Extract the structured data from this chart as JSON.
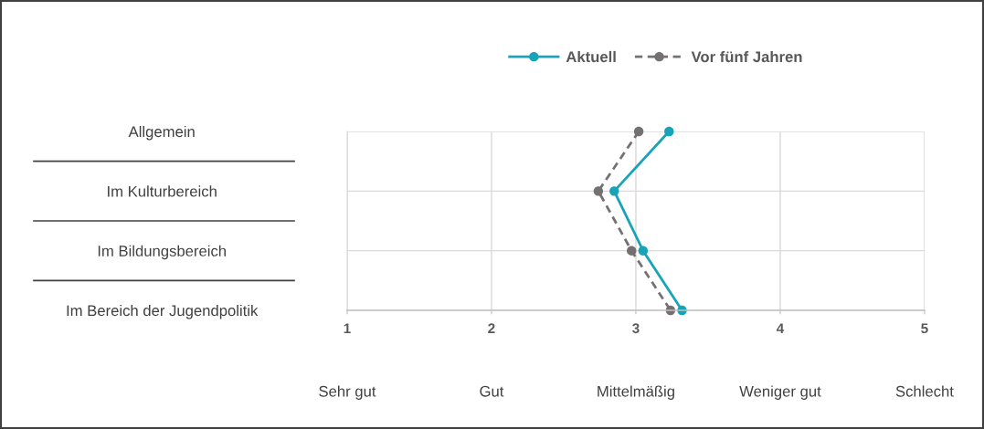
{
  "chart_data": {
    "type": "line",
    "orientation": "horizontal",
    "legend": "top",
    "grid": true,
    "marker": "circle",
    "categories": [
      "Allgemein",
      "Im Kulturbereich",
      "Im Bildungsbereich",
      "Im Bereich der Jugendpolitik"
    ],
    "series": [
      {
        "name": "Aktuell",
        "color": "#17a3b8",
        "line_style": "solid",
        "values": [
          3.23,
          2.85,
          3.05,
          3.32
        ]
      },
      {
        "name": "Vor fünf Jahren",
        "color": "#757171",
        "line_style": "dashed",
        "values": [
          3.02,
          2.74,
          2.97,
          3.24
        ]
      }
    ],
    "xlim": [
      1,
      5
    ],
    "xticks": [
      1,
      2,
      3,
      4,
      5
    ],
    "annotations": [
      "Sehr gut",
      "Gut",
      "Mittelmäßig",
      "Weniger gut",
      "Schlecht"
    ]
  }
}
